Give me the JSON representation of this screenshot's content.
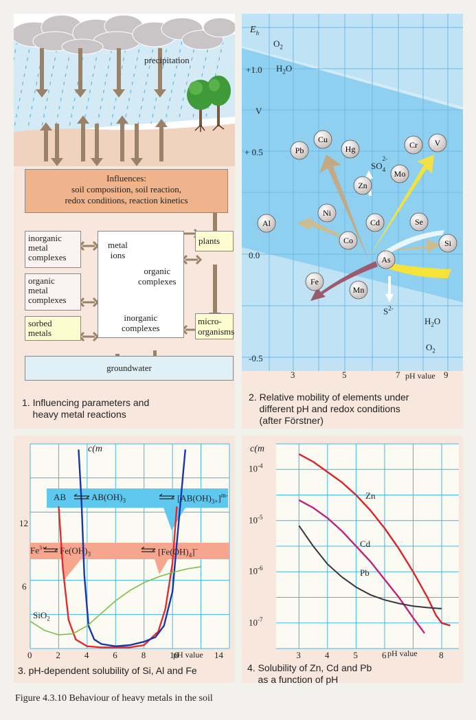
{
  "p1": {
    "precipitation": "precipitation",
    "influences_title": "Influences:",
    "influences_line1": "soil composition, soil reaction,",
    "influences_line2": "redox conditions, reaction kinetics",
    "inorganic_metal_complexes": [
      "inorganic",
      "metal",
      "complexes"
    ],
    "organic_metal_complexes": [
      "organic",
      "metal",
      "complexes"
    ],
    "sorbed_metals": [
      "sorbed",
      "metals"
    ],
    "metal_ions": [
      "metal",
      "ions"
    ],
    "organic_complexes": [
      "organic",
      "complexes"
    ],
    "inorganic_complexes": [
      "inorganic",
      "complexes"
    ],
    "plants": "plants",
    "microorganisms": [
      "micro-",
      "organisms"
    ],
    "groundwater": "groundwater",
    "caption": "1. Influencing parameters and\n    heavy metal reactions",
    "colors": {
      "sky": "#ffffff",
      "rain": "#7fbfe0",
      "soil": "#f0d2bf",
      "influences": "#f0b48c",
      "plants": "#fdfbd0",
      "groundwater": "#dff1f6",
      "arrow": "#9a8268"
    }
  },
  "p2": {
    "ylabel": "E",
    "ylabel_sub": "h",
    "yunit": "V",
    "o2_top": "O",
    "o2_top_sub": "2",
    "h2o_top": "H",
    "h2o_top_sub": "2",
    "h2o_top_end": "O",
    "h2o_bottom": "H",
    "h2o_bottom_sub": "2",
    "h2o_bottom_end": "O",
    "o2_bottom": "O",
    "o2_bottom_sub": "2",
    "so4": "SO",
    "so4_sub": "4",
    "so4_sup": "2-",
    "s2": "S",
    "s2_sup": "2-",
    "xlabel": "pH value",
    "y_ticks": [
      "+1.0",
      "+ 0.5",
      "0.0",
      "-0.5"
    ],
    "x_ticks": [
      "3",
      "5",
      "7",
      "9"
    ],
    "elements": [
      "Pb",
      "Cu",
      "Hg",
      "Cr",
      "V",
      "Mo",
      "Zn",
      "Ni",
      "Cd",
      "Se",
      "Al",
      "Co",
      "As",
      "Si",
      "Fe",
      "Mn"
    ],
    "caption": "2. Relative mobility of elements under\n    different pH and redox conditions\n    (after Förstner)",
    "colors": {
      "bg": "#bfe3f4",
      "band": "#8fd0f0",
      "grid": "#6fb8e3",
      "sphere": "#c8bfbc"
    }
  },
  "p3": {
    "ylabel": "c(m",
    "y_ticks": [
      "12",
      "6"
    ],
    "x_ticks": [
      "0",
      "2",
      "4",
      "6",
      "8",
      "10",
      "14"
    ],
    "xlabel": "pH value",
    "ab": "AB",
    "ab_oh3": "AB(OH)",
    "ab_oh3_sub": "3",
    "ab_complex": "[AB(OH)",
    "ab_complex_sub": "3+",
    "ab_complex_end": "]",
    "ab_complex_sup": "m-",
    "fe3": "Fe",
    "fe3_sup": "3+",
    "fe_oh3": "Fe(OH)",
    "fe_oh3_sub": "3",
    "fe_oh4": "[Fe(OH)",
    "fe_oh4_sub": "4",
    "fe_oh4_end": "]",
    "fe_oh4_sup": "–",
    "sio2": "SiO",
    "sio2_sub": "2",
    "caption": "3. pH-dependent solubility of Si, Al and Fe",
    "colors": {
      "bg": "#fbfbf3",
      "grid": "#3fb8e8",
      "al": "#1a35a8",
      "fe": "#e32b2b",
      "si": "#7ac143",
      "blue_banner": "#5ec8ee",
      "red_banner": "#f6a58f"
    }
  },
  "p4": {
    "ylabel": "c(m",
    "y_ticks": [
      "10",
      "10",
      "10",
      "10"
    ],
    "y_exps": [
      "-4",
      "-5",
      "-6",
      "-7"
    ],
    "x_ticks": [
      "3",
      "4",
      "5",
      "6",
      "8"
    ],
    "xlabel": "pH value",
    "series_labels": [
      "Zn",
      "Cd",
      "Pb"
    ],
    "caption": "4. Solubility of Zn, Cd and Pb\n    as a function of pH",
    "colors": {
      "bg": "#fbfbf3",
      "grid": "#3fb8e8",
      "zn": "#d8232a",
      "cd": "#c2207a",
      "pb": "#3a3340"
    }
  },
  "figure_caption": "Figure 4.3.10 Behaviour of heavy metals in the soil",
  "chart_data": [
    {
      "type": "line",
      "xlabel": "pH value",
      "ylabel": "c(m",
      "xlim": [
        0,
        14
      ],
      "ylim": [
        0,
        18
      ],
      "series": [
        {
          "x": [
            2.0,
            2.3,
            2.7,
            3.2,
            4.0,
            5.0,
            6.0,
            7.0,
            8.0,
            9.0,
            9.5,
            10.0,
            10.3
          ],
          "values": [
            12.5,
            7.0,
            2.5,
            0.8,
            0.2,
            0.1,
            0.1,
            0.1,
            0.3,
            1.5,
            3.5,
            7.5,
            12.5
          ]
        },
        {
          "x": [
            3.4,
            3.6,
            3.8,
            4.1,
            4.5,
            5.0,
            6.0,
            7.0,
            8.0,
            8.8,
            9.4,
            10.0,
            10.5,
            10.9
          ],
          "values": [
            17.5,
            13.0,
            6.5,
            2.0,
            0.8,
            0.4,
            0.2,
            0.3,
            0.6,
            1.0,
            2.0,
            5.0,
            12.0,
            17.5
          ]
        },
        {
          "x": [
            0,
            1,
            2,
            3,
            4,
            5,
            6,
            7,
            8,
            9,
            10,
            11,
            12
          ],
          "values": [
            2.4,
            1.6,
            1.2,
            1.3,
            2.0,
            3.1,
            4.2,
            5.1,
            5.8,
            6.3,
            6.7,
            7.0,
            7.2
          ]
        }
      ]
    },
    {
      "type": "line",
      "xlabel": "pH value",
      "ylabel": "c(m",
      "categories": [
        "3",
        "4",
        "5",
        "6",
        "8"
      ],
      "series": [
        {
          "name": "Zn",
          "x": [
            3,
            3.5,
            4,
            4.5,
            5,
            5.5,
            6,
            6.5,
            7,
            7.5,
            7.8,
            8.0,
            8.3
          ],
          "values": [
            -3.7,
            -3.85,
            -4.05,
            -4.25,
            -4.5,
            -4.8,
            -5.15,
            -5.55,
            -6.0,
            -6.5,
            -6.85,
            -7.0,
            -7.05
          ]
        },
        {
          "name": "Cd",
          "x": [
            3,
            3.5,
            4,
            4.5,
            5,
            5.5,
            6,
            6.5,
            7,
            7.4
          ],
          "values": [
            -4.6,
            -4.75,
            -4.95,
            -5.2,
            -5.5,
            -5.8,
            -6.15,
            -6.5,
            -6.9,
            -7.2
          ]
        },
        {
          "name": "Pb",
          "x": [
            3,
            3.5,
            4,
            4.5,
            5,
            5.5,
            6,
            6.5,
            7,
            7.5,
            8
          ],
          "values": [
            -5.1,
            -5.5,
            -5.85,
            -6.1,
            -6.3,
            -6.45,
            -6.55,
            -6.62,
            -6.67,
            -6.7,
            -6.72
          ]
        }
      ]
    }
  ]
}
